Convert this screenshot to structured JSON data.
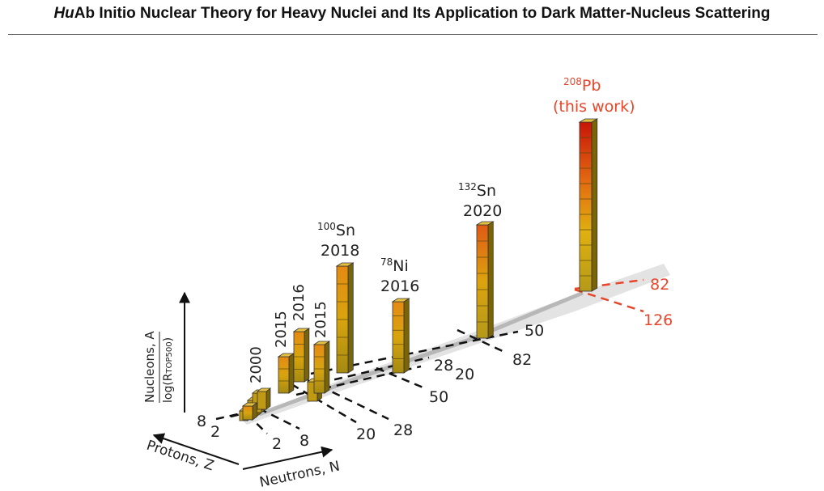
{
  "header": {
    "title_prefix": "Hu",
    "title_rest": "Ab Initio Nuclear Theory for Heavy Nuclei and Its Application to Dark Matter-Nucleus Scattering"
  },
  "chart_data": {
    "type": "bar",
    "axes": {
      "x_label": "Neutrons, N",
      "y_label": "Protons, Z",
      "z_label_num": "Nucleons, A",
      "z_label_den": "log(R",
      "z_label_sub": "TOP500",
      "z_label_close": ")"
    },
    "neutron_magic": [
      "2",
      "8",
      "20",
      "28",
      "50",
      "82",
      "126"
    ],
    "proton_magic": [
      "2",
      "8",
      "20",
      "28",
      "50",
      "82"
    ],
    "bars": [
      {
        "year": "2000",
        "nucleus": "",
        "mass": "",
        "value": 1,
        "color": "#c9a213"
      },
      {
        "year": "2015",
        "nucleus": "",
        "mass": "",
        "value": 3,
        "color": "#c9a213"
      },
      {
        "year": "2016",
        "nucleus": "",
        "mass": "",
        "value": 4,
        "color": "#c9a213"
      },
      {
        "year": "2015",
        "nucleus": "",
        "mass": "",
        "value": 4,
        "color": "#c9a213"
      },
      {
        "year": "2018",
        "nucleus": "Sn",
        "mass": "100",
        "value": 6,
        "color": "#c69a10"
      },
      {
        "year": "2016",
        "nucleus": "Ni",
        "mass": "78",
        "value": 5,
        "color": "#c49610"
      },
      {
        "year": "2020",
        "nucleus": "Sn",
        "mass": "132",
        "value": 7,
        "color": "#e05515"
      },
      {
        "year": "",
        "nucleus": "Pb",
        "mass": "208",
        "value": 11,
        "color": "#c8180a",
        "note": "(this work)"
      }
    ],
    "colors": {
      "highlight": "#e8462a",
      "bar_base": "#b8940d"
    }
  }
}
